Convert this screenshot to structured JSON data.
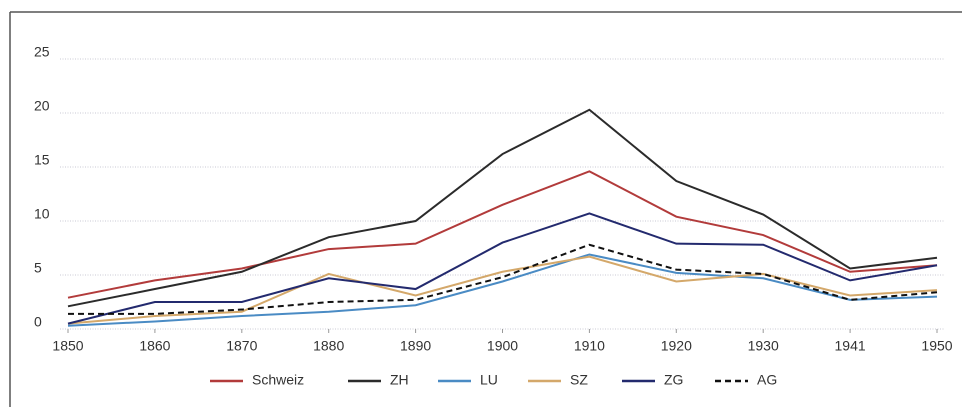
{
  "chart_data": {
    "type": "line",
    "categories": [
      "1850",
      "1860",
      "1870",
      "1880",
      "1890",
      "1900",
      "1910",
      "1920",
      "1930",
      "1941",
      "1950"
    ],
    "series": [
      {
        "name": "Schweiz",
        "color": "#b23b3b",
        "style": "solid",
        "values": [
          2.9,
          4.5,
          5.6,
          7.4,
          7.9,
          11.5,
          14.6,
          10.4,
          8.7,
          5.3,
          5.9
        ]
      },
      {
        "name": "ZH",
        "color": "#2b2b2b",
        "style": "solid",
        "values": [
          2.1,
          3.7,
          5.3,
          8.5,
          10.0,
          16.2,
          20.3,
          13.7,
          10.6,
          5.6,
          6.6
        ]
      },
      {
        "name": "LU",
        "color": "#4a8bc4",
        "style": "solid",
        "values": [
          0.3,
          0.7,
          1.2,
          1.6,
          2.2,
          4.4,
          6.9,
          5.2,
          4.7,
          2.7,
          3.0
        ]
      },
      {
        "name": "SZ",
        "color": "#d4a86a",
        "style": "solid",
        "values": [
          0.5,
          1.2,
          1.6,
          5.1,
          3.1,
          5.3,
          6.7,
          4.4,
          5.1,
          3.1,
          3.6
        ]
      },
      {
        "name": "ZG",
        "color": "#232a6e",
        "style": "solid",
        "values": [
          0.5,
          2.5,
          2.5,
          4.7,
          3.7,
          8.0,
          10.7,
          7.9,
          7.8,
          4.5,
          5.9
        ]
      },
      {
        "name": "AG",
        "color": "#111111",
        "style": "dashed",
        "values": [
          1.4,
          1.4,
          1.8,
          2.5,
          2.7,
          4.8,
          7.8,
          5.5,
          5.1,
          2.7,
          3.4
        ]
      }
    ],
    "ylim": [
      0,
      25
    ],
    "yticks": [
      0,
      5,
      10,
      15,
      20,
      25
    ],
    "grid": true,
    "legend": "bottom"
  }
}
